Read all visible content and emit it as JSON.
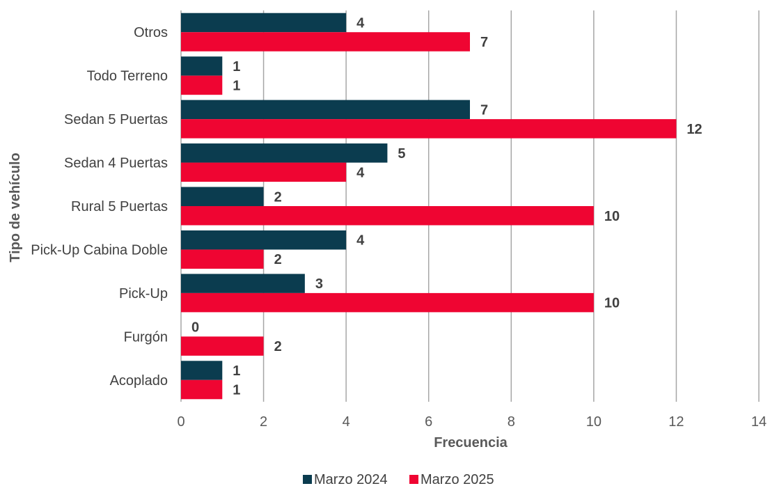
{
  "chart_data": {
    "type": "bar",
    "orientation": "horizontal",
    "categories": [
      "Acoplado",
      "Furgón",
      "Pick-Up",
      "Pick-Up Cabina Doble",
      "Rural 5 Puertas",
      "Sedan 4 Puertas",
      "Sedan 5 Puertas",
      "Todo Terreno",
      "Otros"
    ],
    "series": [
      {
        "name": "Marzo 2024",
        "color": "#0b3c4f",
        "values": [
          1,
          0,
          3,
          4,
          2,
          5,
          7,
          1,
          4
        ]
      },
      {
        "name": "Marzo 2025",
        "color": "#ef0532",
        "values": [
          1,
          2,
          10,
          2,
          10,
          4,
          12,
          1,
          7
        ]
      }
    ],
    "xlabel": "Frecuencia",
    "ylabel": "Tipo de vehículo",
    "xlim": [
      0,
      14
    ],
    "x_ticks": [
      0,
      2,
      4,
      6,
      8,
      10,
      12,
      14
    ],
    "grid": "vertical",
    "legend_position": "bottom",
    "data_labels": true
  }
}
